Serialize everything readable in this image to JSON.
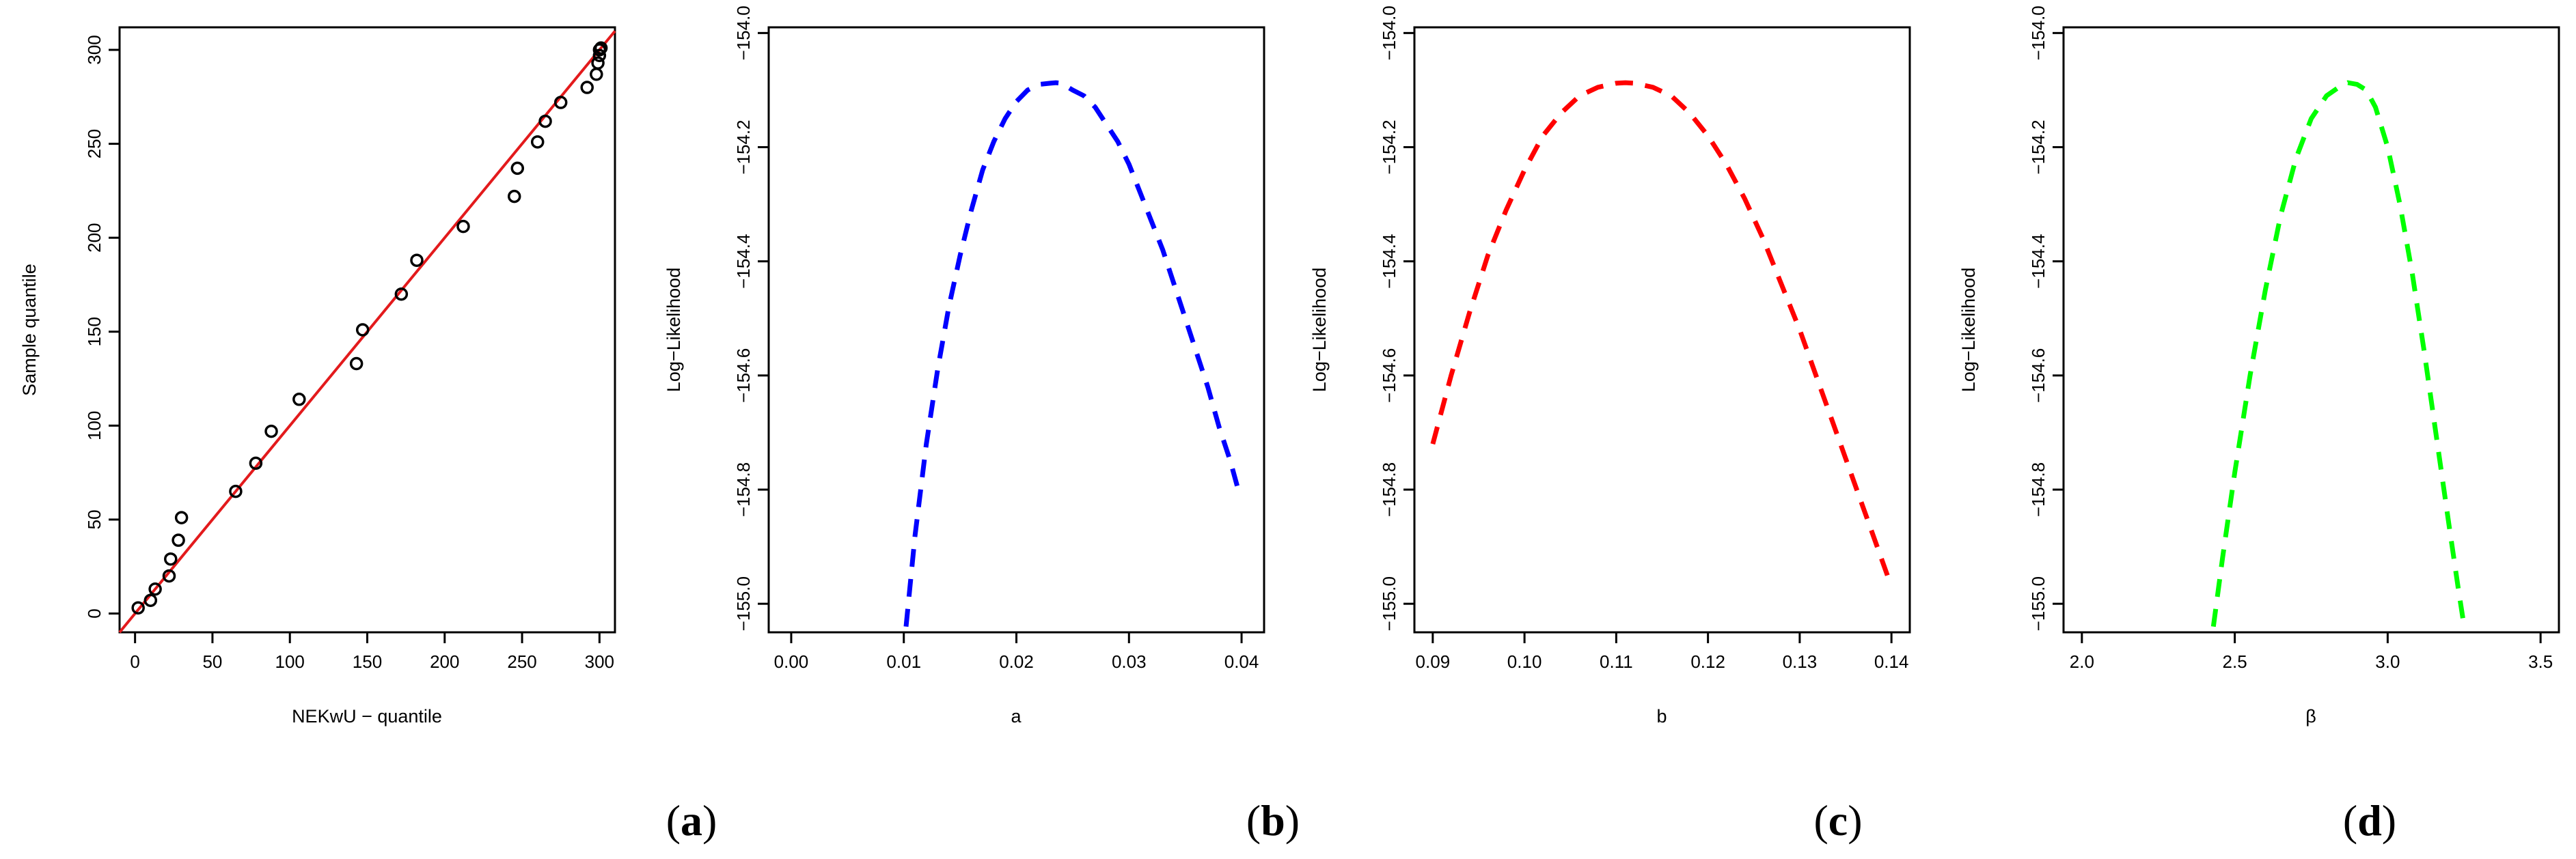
{
  "chart_data": [
    {
      "id": "a",
      "type": "scatter",
      "panel_label": "(a)",
      "panel_label_letter": "a",
      "xlabel": "NEKwU − quantile",
      "ylabel": "Sample quantile",
      "xlim": [
        -10,
        310
      ],
      "ylim": [
        -10,
        312
      ],
      "xticks": [
        0,
        50,
        100,
        150,
        200,
        250,
        300
      ],
      "yticks": [
        0,
        50,
        100,
        150,
        200,
        250,
        300
      ],
      "reference_line": {
        "from": [
          -10,
          -10
        ],
        "to": [
          320,
          320
        ],
        "color": "#e31a1c"
      },
      "points": [
        [
          2,
          3
        ],
        [
          10,
          7
        ],
        [
          13,
          13
        ],
        [
          22,
          20
        ],
        [
          23,
          29
        ],
        [
          28,
          39
        ],
        [
          30,
          51
        ],
        [
          65,
          65
        ],
        [
          78,
          80
        ],
        [
          88,
          97
        ],
        [
          106,
          114
        ],
        [
          143,
          133
        ],
        [
          147,
          151
        ],
        [
          172,
          170
        ],
        [
          182,
          188
        ],
        [
          212,
          206
        ],
        [
          245,
          222
        ],
        [
          247,
          237
        ],
        [
          260,
          251
        ],
        [
          265,
          262
        ],
        [
          275,
          272
        ],
        [
          292,
          280
        ],
        [
          298,
          287
        ],
        [
          299,
          293
        ],
        [
          300,
          297
        ],
        [
          300,
          300
        ],
        [
          301,
          301
        ]
      ]
    },
    {
      "id": "b",
      "type": "line",
      "panel_label": "(b)",
      "panel_label_letter": "b",
      "xlabel": "a",
      "ylabel": "Log−Likelihood",
      "xlim": [
        -0.002,
        0.042
      ],
      "ylim": [
        -155.05,
        -153.99
      ],
      "xticks": [
        0.0,
        0.01,
        0.02,
        0.03,
        0.04
      ],
      "xtick_labels": [
        "0.00",
        "0.01",
        "0.02",
        "0.03",
        "0.04"
      ],
      "yticks": [
        -155.0,
        -154.8,
        -154.6,
        -154.4,
        -154.2,
        -154.0
      ],
      "ytick_labels": [
        "−155.0",
        "−154.8",
        "−154.6",
        "−154.4",
        "−154.2",
        "−154.0"
      ],
      "line_style": "dashed",
      "color": "#0000ff",
      "x": [
        0.0102,
        0.011,
        0.012,
        0.013,
        0.014,
        0.015,
        0.016,
        0.017,
        0.018,
        0.019,
        0.02,
        0.021,
        0.022,
        0.023,
        0.0235,
        0.024,
        0.025,
        0.026,
        0.027,
        0.028,
        0.029,
        0.03,
        0.031,
        0.032,
        0.033,
        0.034,
        0.035,
        0.036,
        0.037,
        0.038,
        0.039,
        0.0397
      ],
      "y": [
        -155.04,
        -154.88,
        -154.72,
        -154.59,
        -154.48,
        -154.39,
        -154.31,
        -154.24,
        -154.19,
        -154.15,
        -154.12,
        -154.1,
        -154.09,
        -154.088,
        -154.087,
        -154.088,
        -154.1,
        -154.11,
        -154.13,
        -154.16,
        -154.19,
        -154.23,
        -154.28,
        -154.33,
        -154.38,
        -154.44,
        -154.5,
        -154.56,
        -154.62,
        -154.69,
        -154.75,
        -154.8
      ]
    },
    {
      "id": "c",
      "type": "line",
      "panel_label": "(c)",
      "panel_label_letter": "c",
      "xlabel": "b",
      "ylabel": "Log−Likelihood",
      "xlim": [
        0.088,
        0.142
      ],
      "ylim": [
        -155.05,
        -153.99
      ],
      "xticks": [
        0.09,
        0.1,
        0.11,
        0.12,
        0.13,
        0.14
      ],
      "xtick_labels": [
        "0.09",
        "0.10",
        "0.11",
        "0.12",
        "0.13",
        "0.14"
      ],
      "yticks": [
        -155.0,
        -154.8,
        -154.6,
        -154.4,
        -154.2,
        -154.0
      ],
      "ytick_labels": [
        "−155.0",
        "−154.8",
        "−154.6",
        "−154.4",
        "−154.2",
        "−154.0"
      ],
      "line_style": "dashed",
      "color": "#ff0000",
      "x": [
        0.09,
        0.092,
        0.094,
        0.096,
        0.098,
        0.1,
        0.102,
        0.104,
        0.106,
        0.108,
        0.11,
        0.111,
        0.112,
        0.114,
        0.116,
        0.118,
        0.12,
        0.122,
        0.124,
        0.126,
        0.128,
        0.13,
        0.132,
        0.134,
        0.136,
        0.138,
        0.14
      ],
      "y": [
        -154.72,
        -154.6,
        -154.49,
        -154.39,
        -154.31,
        -154.24,
        -154.18,
        -154.14,
        -154.11,
        -154.095,
        -154.088,
        -154.087,
        -154.088,
        -154.095,
        -154.11,
        -154.14,
        -154.18,
        -154.23,
        -154.29,
        -154.36,
        -154.44,
        -154.52,
        -154.61,
        -154.7,
        -154.79,
        -154.88,
        -154.97
      ]
    },
    {
      "id": "d",
      "type": "line",
      "panel_label": "(d)",
      "panel_label_letter": "d",
      "xlabel": "β",
      "ylabel": "Log−Likelihood",
      "xlim": [
        1.94,
        3.56
      ],
      "ylim": [
        -155.05,
        -153.99
      ],
      "xticks": [
        2.0,
        2.5,
        3.0,
        3.5
      ],
      "xtick_labels": [
        "2.0",
        "2.5",
        "3.0",
        "3.5"
      ],
      "yticks": [
        -155.0,
        -154.8,
        -154.6,
        -154.4,
        -154.2,
        -154.0
      ],
      "ytick_labels": [
        "−155.0",
        "−154.8",
        "−154.6",
        "−154.4",
        "−154.2",
        "−154.0"
      ],
      "line_style": "dashed",
      "color": "#00ff00",
      "x": [
        2.43,
        2.46,
        2.5,
        2.55,
        2.6,
        2.65,
        2.7,
        2.75,
        2.8,
        2.84,
        2.87,
        2.9,
        2.93,
        2.96,
        3.0,
        3.04,
        3.08,
        3.12,
        3.16,
        3.2,
        3.23,
        3.25
      ],
      "y": [
        -155.04,
        -154.92,
        -154.77,
        -154.6,
        -154.45,
        -154.32,
        -154.22,
        -154.15,
        -154.11,
        -154.095,
        -154.087,
        -154.09,
        -154.1,
        -154.13,
        -154.2,
        -154.3,
        -154.42,
        -154.56,
        -154.71,
        -154.86,
        -154.97,
        -155.04
      ]
    }
  ]
}
